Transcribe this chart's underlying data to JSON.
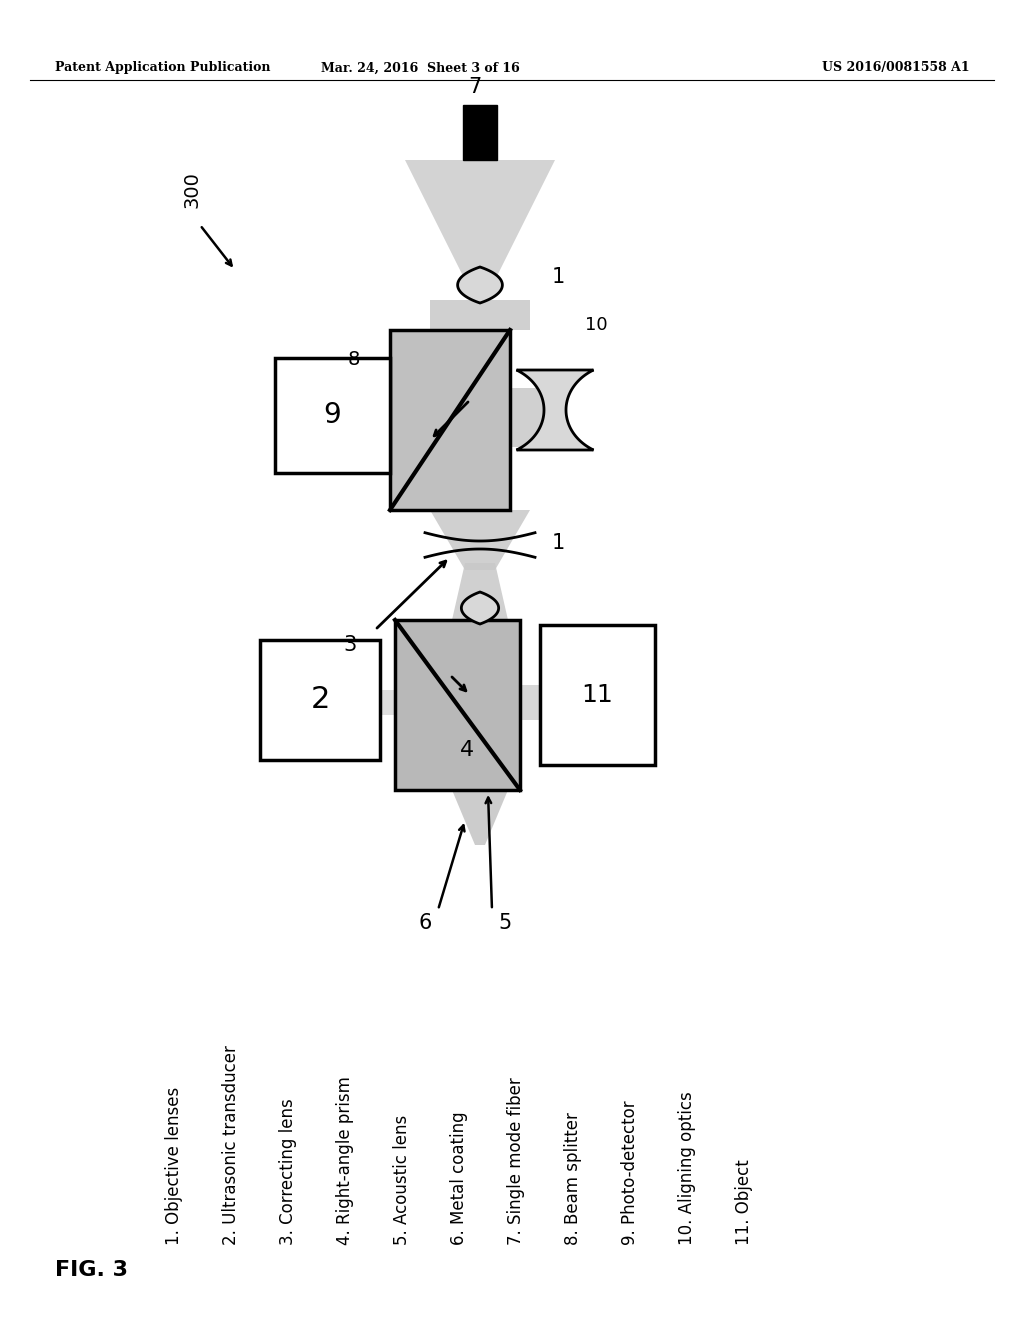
{
  "header_left": "Patent Application Publication",
  "header_mid": "Mar. 24, 2016  Sheet 3 of 16",
  "header_right": "US 2016/0081558 A1",
  "fig_label": "FIG. 3",
  "ref_number": "300",
  "legend_items": [
    "Objective lenses",
    "Ultrasonic transducer",
    "Correcting lens",
    "Right-angle prism",
    "Acoustic lens",
    "Metal coating",
    "Single mode fiber",
    "Beam splitter",
    "Photo-detector",
    "Aligning optics",
    "Object"
  ],
  "bg_color": "#ffffff",
  "beam_fill": "#c8c8c8",
  "box_fill": "#ffffff",
  "bs_fill": "#c0c0c0",
  "prism_fill": "#b8b8b8"
}
